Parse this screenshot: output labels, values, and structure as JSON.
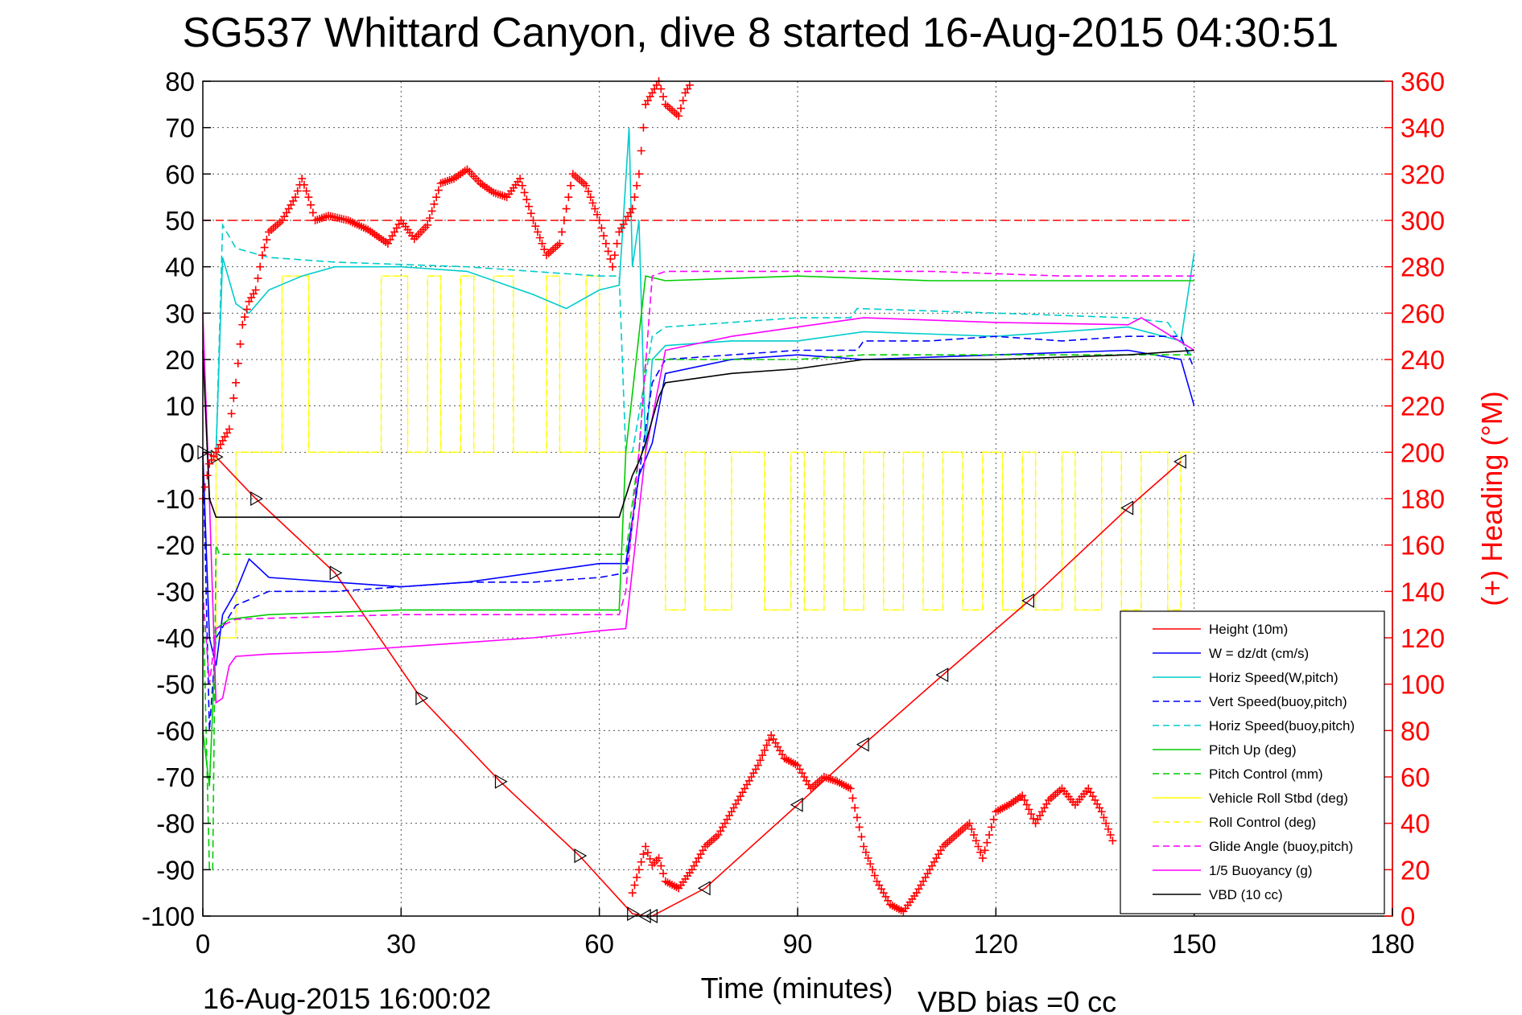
{
  "chart_data": {
    "type": "line",
    "title": "SG537 Whittard Canyon, dive 8 started 16-Aug-2015 04:30:51",
    "xlabel": "Time (minutes)",
    "ylabel_right": "(+) Heading (°M)",
    "xlim": [
      0,
      180
    ],
    "ylim": [
      -100,
      80
    ],
    "ylim_right": [
      0,
      360
    ],
    "x_ticks": [
      "0",
      "30",
      "60",
      "90",
      "120",
      "150",
      "180"
    ],
    "y_ticks": [
      "80",
      "70",
      "60",
      "50",
      "40",
      "30",
      "20",
      "10",
      "0",
      "-10",
      "-20",
      "-30",
      "-40",
      "-50",
      "-60",
      "-70",
      "-80",
      "-90",
      "-100"
    ],
    "y_ticks_right": [
      "360",
      "340",
      "320",
      "300",
      "280",
      "260",
      "240",
      "220",
      "200",
      "180",
      "160",
      "140",
      "120",
      "100",
      "80",
      "60",
      "40",
      "20",
      "0"
    ],
    "grid": true,
    "legend_position": "bottom-right",
    "footer_date": "16-Aug-2015 16:00:02",
    "footer_bias": "VBD bias =0 cc",
    "series": [
      {
        "name": "Height (10m)",
        "color": "#ff0000",
        "style": "solid",
        "marker": "triangle",
        "x": [
          0,
          2,
          8,
          20,
          33,
          45,
          57,
          65,
          67,
          68,
          76,
          90,
          100,
          112,
          125,
          140,
          148
        ],
        "y": [
          0,
          -1,
          -10,
          -26,
          -53,
          -71,
          -87,
          -99.5,
          -100,
          -100,
          -94,
          -76,
          -63,
          -48,
          -32,
          -12,
          -2
        ]
      },
      {
        "name": "W = dz/dt (cm/s)",
        "color": "#0000ff",
        "style": "solid",
        "x": [
          0,
          1,
          2,
          3,
          5,
          7,
          10,
          20,
          30,
          40,
          50,
          60,
          64,
          66,
          68,
          70,
          80,
          90,
          100,
          120,
          140,
          148,
          150
        ],
        "y": [
          0,
          -40,
          -46,
          -35,
          -30,
          -23,
          -27,
          -28,
          -29,
          -28,
          -26,
          -24,
          -24,
          -5,
          2,
          17,
          20,
          21,
          20,
          21,
          22,
          20,
          10
        ]
      },
      {
        "name": "Horiz Speed(W,pitch)",
        "color": "#00cccc",
        "style": "solid",
        "x": [
          0,
          2,
          3,
          5,
          7,
          10,
          15,
          20,
          30,
          40,
          50,
          55,
          60,
          63,
          64.5,
          65,
          66,
          67,
          68,
          70,
          80,
          90,
          100,
          120,
          140,
          148,
          150
        ],
        "y": [
          0,
          0,
          42,
          32,
          30,
          35,
          38,
          40,
          40,
          39,
          34,
          31,
          35,
          36,
          70,
          40,
          50,
          0,
          20,
          23,
          24,
          24,
          26,
          25,
          27,
          24,
          43
        ]
      },
      {
        "name": "Vert Speed(buoy,pitch)",
        "color": "#0000ff",
        "style": "dashed",
        "x": [
          0,
          1,
          2,
          5,
          10,
          20,
          30,
          40,
          50,
          60,
          64,
          66,
          68,
          70,
          80,
          90,
          99,
          100,
          110,
          120,
          130,
          140,
          148,
          150
        ],
        "y": [
          0,
          -60,
          -40,
          -33,
          -30,
          -30,
          -29,
          -28,
          -28,
          -27,
          -26,
          -5,
          15,
          20,
          21,
          22,
          22,
          24,
          24,
          25,
          24,
          25,
          25,
          18
        ]
      },
      {
        "name": "Horiz Speed(buoy,pitch)",
        "color": "#00cccc",
        "style": "dashed",
        "x": [
          0,
          2,
          3,
          5,
          10,
          20,
          40,
          60,
          63,
          64,
          65,
          68,
          70,
          80,
          90,
          98,
          99,
          120,
          140,
          146,
          150
        ],
        "y": [
          0,
          0,
          49,
          44,
          42,
          41,
          40,
          38,
          38,
          0,
          0,
          25,
          27,
          28,
          29,
          29,
          31,
          30,
          29,
          28,
          20
        ]
      },
      {
        "name": "Pitch Up (deg)",
        "color": "#00cc00",
        "style": "solid",
        "x": [
          0,
          1,
          2,
          4,
          10,
          30,
          50,
          63,
          64,
          67,
          70,
          90,
          110,
          130,
          148,
          150
        ],
        "y": [
          -60,
          -72,
          -38,
          -36,
          -35,
          -34,
          -34,
          -34,
          0,
          38,
          37,
          38,
          37,
          37,
          37,
          37
        ]
      },
      {
        "name": "Pitch Control (mm)",
        "color": "#00cc00",
        "style": "dashed",
        "x": [
          0,
          1,
          1.5,
          2,
          2.5,
          30,
          63,
          64,
          66,
          67,
          70,
          90,
          100,
          150
        ],
        "y": [
          -30,
          -90,
          -90,
          -20,
          -22,
          -22,
          -22,
          -22,
          0,
          20,
          20,
          20,
          21,
          21
        ]
      },
      {
        "name": "Vehicle Roll Stbd (deg)",
        "color": "#ffff00",
        "style": "solid",
        "x": [
          0,
          150
        ],
        "y": [
          0,
          0
        ]
      },
      {
        "name": "Roll Control (deg)",
        "color": "#ffff00",
        "style": "dashed",
        "x": [
          2,
          150
        ],
        "y": [
          0,
          0
        ]
      },
      {
        "name": "Glide Angle (buoy,pitch)",
        "color": "#ff00ff",
        "style": "dashed",
        "x": [
          0,
          1,
          2,
          5,
          30,
          63,
          64,
          66,
          68,
          70,
          90,
          110,
          130,
          148,
          150
        ],
        "y": [
          -30,
          -50,
          -38,
          -36,
          -35,
          -35,
          -30,
          0,
          38,
          39,
          39,
          39,
          38,
          38,
          38
        ]
      },
      {
        "name": "1/5 Buoyancy (g)",
        "color": "#ff00ff",
        "style": "solid",
        "x": [
          0,
          1,
          2,
          3,
          4,
          5,
          10,
          20,
          30,
          40,
          50,
          60,
          64,
          67,
          70,
          80,
          90,
          100,
          120,
          140,
          142,
          150
        ],
        "y": [
          30,
          -10,
          -54,
          -53,
          -46,
          -44,
          -43.5,
          -43,
          -42,
          -41,
          -40,
          -38.5,
          -38,
          0,
          22,
          25,
          27,
          29,
          28,
          27.5,
          29,
          22
        ]
      },
      {
        "name": "VBD (10 cc)",
        "color": "#000000",
        "style": "solid",
        "x": [
          0,
          1,
          2,
          63,
          65,
          66,
          67,
          69,
          70,
          75,
          80,
          90,
          100,
          120,
          140,
          150
        ],
        "y": [
          22,
          -10,
          -14,
          -14,
          -5,
          -2,
          2,
          12,
          15,
          16,
          17,
          18,
          20,
          20,
          21,
          22
        ]
      }
    ],
    "heading_series": {
      "name": "(+) Heading (°M)",
      "color": "#ff0000",
      "marker": "plus",
      "axis": "right",
      "x": [
        0,
        1,
        2,
        3,
        4,
        5,
        6,
        7,
        8,
        9,
        10,
        12,
        14,
        15,
        16,
        17,
        19,
        22,
        25,
        28,
        30,
        32,
        34,
        36,
        38,
        40,
        42,
        44,
        46,
        48,
        50,
        52,
        54,
        56,
        58,
        60,
        62,
        63,
        64,
        65,
        66,
        67,
        68,
        69,
        70,
        72,
        73,
        74
      ],
      "y": [
        180,
        195,
        200,
        205,
        210,
        230,
        255,
        265,
        270,
        285,
        295,
        300,
        310,
        318,
        310,
        300,
        302,
        300,
        296,
        290,
        300,
        292,
        298,
        316,
        318,
        322,
        316,
        312,
        310,
        318,
        300,
        285,
        290,
        320,
        315,
        300,
        280,
        295,
        300,
        305,
        320,
        350,
        355,
        360,
        350,
        345,
        355,
        360
      ]
    },
    "heading_series_b": {
      "x": [
        65,
        66,
        67,
        68,
        69,
        70,
        72,
        74,
        76,
        78,
        80,
        82,
        84,
        86,
        88,
        90,
        92,
        94,
        96,
        98,
        100,
        102,
        104,
        106,
        108,
        110,
        112,
        114,
        116,
        118,
        120,
        122,
        124,
        126,
        128,
        130,
        132,
        134,
        136,
        138
      ],
      "y": [
        10,
        20,
        30,
        22,
        25,
        15,
        12,
        20,
        30,
        35,
        45,
        55,
        65,
        78,
        68,
        65,
        55,
        60,
        58,
        55,
        30,
        15,
        5,
        2,
        10,
        20,
        30,
        35,
        40,
        25,
        45,
        48,
        52,
        40,
        50,
        55,
        48,
        55,
        45,
        30
      ]
    },
    "heading_ref": {
      "value": 300,
      "style": "dashed",
      "color": "#ff0000",
      "x": [
        0,
        150
      ]
    },
    "roll_square_wave": {
      "dive_periods": [
        [
          12,
          16
        ],
        [
          27,
          31
        ],
        [
          34,
          36
        ],
        [
          39,
          41
        ],
        [
          44,
          47
        ],
        [
          52,
          54
        ],
        [
          58,
          60
        ]
      ],
      "climb_periods": [
        [
          70,
          73
        ],
        [
          76,
          80
        ],
        [
          85,
          89
        ],
        [
          91,
          94
        ],
        [
          97,
          100
        ],
        [
          103,
          106
        ],
        [
          109,
          112
        ],
        [
          115,
          118
        ],
        [
          121,
          124
        ],
        [
          126,
          130
        ],
        [
          132,
          136
        ],
        [
          139,
          142
        ],
        [
          146,
          148
        ]
      ]
    }
  }
}
